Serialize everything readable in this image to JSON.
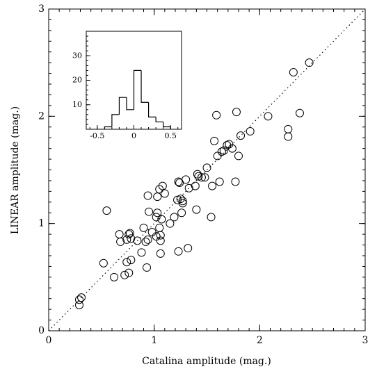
{
  "chart_data": [
    {
      "type": "scatter",
      "xlabel": "Catalina amplitude (mag.)",
      "ylabel": "LINEAR amplitude (mag.)",
      "xlim": [
        0,
        3
      ],
      "ylim": [
        0,
        3
      ],
      "xticks": [
        0,
        1,
        2,
        3
      ],
      "yticks": [
        0,
        1,
        2,
        3
      ],
      "reference_line": "y=x",
      "color": "#000000",
      "x": [
        0.29,
        0.29,
        0.31,
        0.52,
        0.55,
        0.62,
        0.67,
        0.68,
        0.72,
        0.74,
        0.74,
        0.76,
        0.76,
        0.77,
        0.78,
        0.78,
        0.84,
        0.88,
        0.9,
        0.92,
        0.93,
        0.94,
        0.94,
        0.95,
        0.98,
        1.02,
        1.02,
        1.03,
        1.03,
        1.05,
        1.05,
        1.06,
        1.06,
        1.06,
        1.07,
        1.08,
        1.1,
        1.15,
        1.19,
        1.22,
        1.23,
        1.23,
        1.24,
        1.25,
        1.26,
        1.27,
        1.27,
        1.3,
        1.32,
        1.33,
        1.39,
        1.4,
        1.41,
        1.42,
        1.45,
        1.48,
        1.5,
        1.54,
        1.55,
        1.57,
        1.59,
        1.6,
        1.62,
        1.64,
        1.66,
        1.69,
        1.71,
        1.74,
        1.77,
        1.78,
        1.8,
        1.82,
        1.91,
        2.08,
        2.27,
        2.27,
        2.32,
        2.38,
        2.47
      ],
      "values": [
        0.24,
        0.29,
        0.31,
        0.63,
        1.12,
        0.5,
        0.9,
        0.83,
        0.52,
        0.85,
        0.64,
        0.54,
        0.9,
        0.91,
        0.86,
        0.66,
        0.84,
        0.73,
        0.96,
        0.83,
        0.59,
        0.85,
        1.26,
        1.11,
        0.92,
        0.88,
        1.06,
        1.1,
        1.25,
        1.32,
        0.96,
        0.72,
        0.84,
        0.89,
        1.04,
        1.35,
        1.28,
        1.0,
        1.06,
        1.22,
        0.74,
        1.39,
        1.38,
        1.23,
        1.1,
        1.19,
        1.21,
        1.41,
        0.77,
        1.33,
        1.35,
        1.13,
        1.46,
        1.44,
        1.43,
        1.43,
        1.52,
        1.06,
        1.35,
        1.77,
        2.01,
        1.63,
        1.39,
        1.67,
        1.68,
        1.73,
        1.74,
        1.7,
        1.39,
        2.04,
        1.63,
        1.82,
        1.86,
        2.0,
        1.88,
        1.81,
        2.41,
        2.03,
        2.5
      ]
    },
    {
      "type": "histogram",
      "bins": [
        -0.4,
        -0.3,
        -0.2,
        -0.1,
        0,
        0.1,
        0.2,
        0.3,
        0.4,
        0.5
      ],
      "values": [
        1,
        6,
        13,
        8,
        24,
        11,
        5,
        3,
        1
      ],
      "xlim": [
        -0.65,
        0.65
      ],
      "ylim": [
        0,
        40
      ],
      "xticks": [
        -0.5,
        0,
        0.5
      ],
      "yticks": [
        10,
        20,
        30
      ],
      "color": "#000000"
    }
  ]
}
